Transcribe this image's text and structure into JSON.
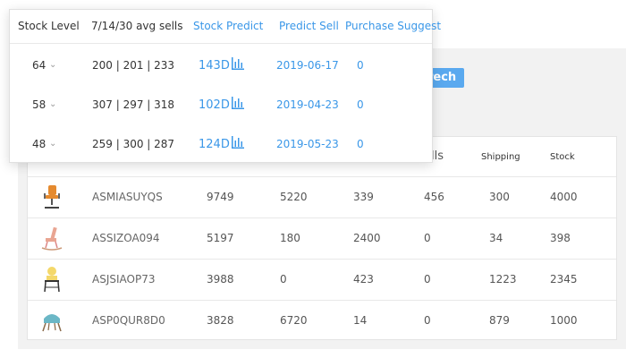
{
  "search_button": {
    "label": "rech"
  },
  "main_table": {
    "headers": {
      "partial": "lls",
      "shipping": "Shipping",
      "stock": "Stock"
    },
    "rows": [
      {
        "sku": "ASMIASUYQS",
        "c1": "9749",
        "c2": "5220",
        "c3": "339",
        "c4": "456",
        "shipping": "300",
        "stock": "4000",
        "thumb": "office-chair"
      },
      {
        "sku": "ASSIZOA094",
        "c1": "5197",
        "c2": "180",
        "c3": "2400",
        "c4": "0",
        "shipping": "34",
        "stock": "398",
        "thumb": "rocking-chair"
      },
      {
        "sku": "ASJSIAOP73",
        "c1": "3988",
        "c2": "0",
        "c3": "423",
        "c4": "0",
        "shipping": "1223",
        "stock": "2345",
        "thumb": "high-chair"
      },
      {
        "sku": "ASP0QUR8D0",
        "c1": "3828",
        "c2": "6720",
        "c3": "14",
        "c4": "0",
        "shipping": "879",
        "stock": "1000",
        "thumb": "lounge-chair"
      }
    ]
  },
  "popup": {
    "headers": {
      "stock_level": "Stock Level",
      "avg_sells": "7/14/30 avg sells",
      "stock_predict": "Stock Predict",
      "predict_sell": "Predict Sell",
      "purchase_suggest": "Purchase Suggest"
    },
    "rows": [
      {
        "level": "64",
        "avg": "200 | 201 | 233",
        "predict": "143D",
        "date": "2019-06-17",
        "suggest": "0"
      },
      {
        "level": "58",
        "avg": "307 | 297 | 318",
        "predict": "102D",
        "date": "2019-04-23",
        "suggest": "0"
      },
      {
        "level": "48",
        "avg": "259 | 300 | 287",
        "predict": "124D",
        "date": "2019-05-23",
        "suggest": "0"
      }
    ],
    "chevron_icon": "chevron-down-icon",
    "chart_icon": "bar-chart-icon"
  },
  "colors": {
    "accent": "#3a97e8",
    "button": "#5aa9ef",
    "panel": "#f2f2f2"
  }
}
